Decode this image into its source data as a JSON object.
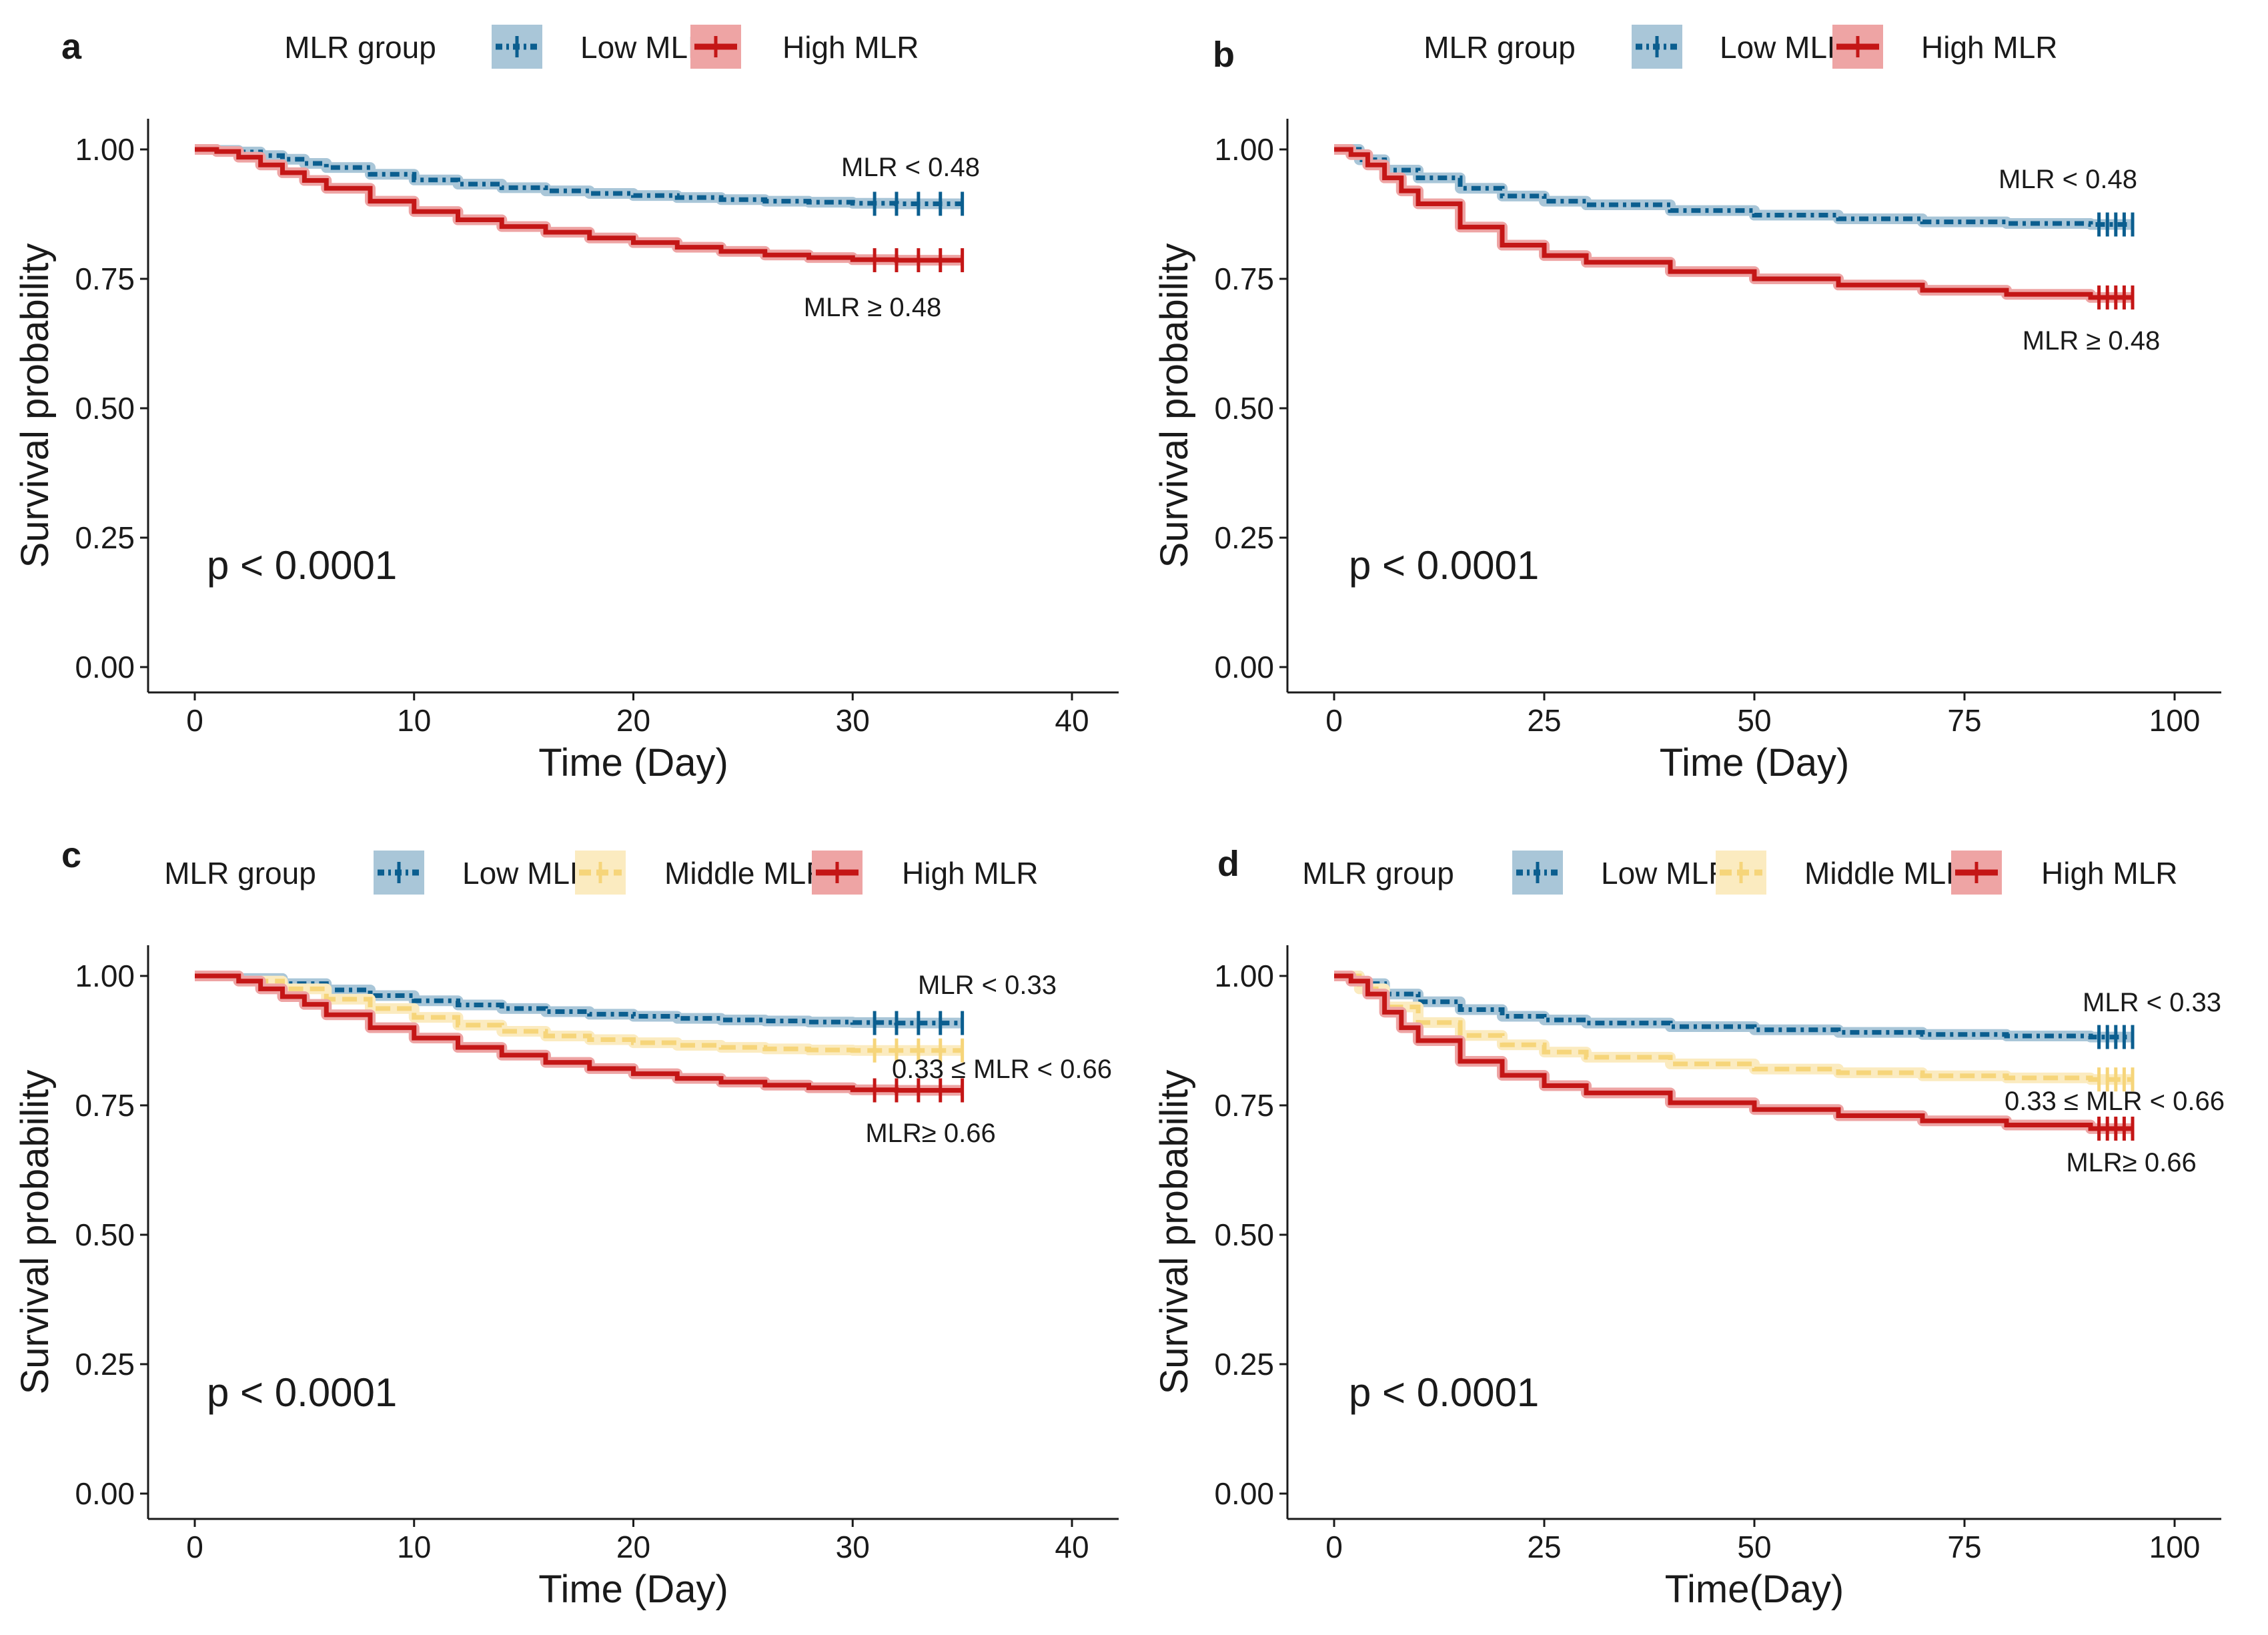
{
  "colors": {
    "low": "#0b5e8f",
    "low_band": "#a9c6d8",
    "middle": "#f6d57a",
    "middle_band": "#fbebc0",
    "high": "#c41616",
    "high_band": "#eea4a4",
    "axis": "#1a1a1a"
  },
  "chart_data": [
    {
      "panel": "a",
      "type": "line",
      "legend_title": "MLR group",
      "ylabel": "Survival probability",
      "xlabel": "Time (Day)",
      "xlim": [
        0,
        40
      ],
      "xticks": [
        "0",
        "10",
        "20",
        "30",
        "40"
      ],
      "ylim": [
        0,
        1
      ],
      "yticks": [
        "0.00",
        "0.25",
        "0.50",
        "0.75",
        "1.00"
      ],
      "p_value": "p < 0.0001",
      "series": [
        {
          "name": "Low MLR",
          "key": "low",
          "annotation": "MLR < 0.48",
          "x": [
            0,
            1,
            2,
            3,
            4,
            5,
            6,
            8,
            10,
            12,
            14,
            16,
            18,
            20,
            22,
            24,
            26,
            28,
            30,
            32,
            35
          ],
          "y": [
            1.0,
            0.998,
            0.995,
            0.988,
            0.981,
            0.973,
            0.965,
            0.952,
            0.941,
            0.933,
            0.926,
            0.92,
            0.915,
            0.911,
            0.907,
            0.903,
            0.9,
            0.898,
            0.896,
            0.895,
            0.895
          ],
          "censor": [
            31,
            32,
            33,
            34,
            35
          ]
        },
        {
          "name": "High MLR",
          "key": "high",
          "annotation": "MLR ≥ 0.48",
          "x": [
            0,
            1,
            2,
            3,
            4,
            5,
            6,
            8,
            10,
            12,
            14,
            16,
            18,
            20,
            22,
            24,
            26,
            28,
            30,
            32,
            35
          ],
          "y": [
            1.0,
            0.996,
            0.985,
            0.97,
            0.955,
            0.94,
            0.925,
            0.9,
            0.88,
            0.864,
            0.851,
            0.84,
            0.829,
            0.82,
            0.811,
            0.803,
            0.796,
            0.791,
            0.787,
            0.786,
            0.786
          ],
          "censor": [
            31,
            32,
            33,
            34,
            35
          ]
        }
      ]
    },
    {
      "panel": "b",
      "type": "line",
      "legend_title": "MLR group",
      "ylabel": "Survival probability",
      "xlabel": "Time (Day)",
      "xlim": [
        0,
        100
      ],
      "xticks": [
        "0",
        "25",
        "50",
        "75",
        "100"
      ],
      "ylim": [
        0,
        1
      ],
      "yticks": [
        "0.00",
        "0.25",
        "0.50",
        "0.75",
        "1.00"
      ],
      "p_value": "p < 0.0001",
      "series": [
        {
          "name": "Low MLR",
          "key": "low",
          "annotation": "MLR < 0.48",
          "x": [
            0,
            3,
            6,
            10,
            15,
            20,
            25,
            30,
            40,
            50,
            60,
            70,
            80,
            90,
            95
          ],
          "y": [
            1.0,
            0.98,
            0.96,
            0.945,
            0.925,
            0.91,
            0.9,
            0.893,
            0.882,
            0.873,
            0.866,
            0.86,
            0.857,
            0.855,
            0.855
          ],
          "censor": [
            91,
            92,
            93,
            94,
            95
          ]
        },
        {
          "name": "High MLR",
          "key": "high",
          "annotation": "MLR ≥ 0.48",
          "x": [
            0,
            2,
            4,
            6,
            8,
            10,
            15,
            20,
            25,
            30,
            40,
            50,
            60,
            70,
            80,
            90,
            95
          ],
          "y": [
            1.0,
            0.99,
            0.97,
            0.945,
            0.92,
            0.895,
            0.85,
            0.815,
            0.795,
            0.782,
            0.764,
            0.75,
            0.738,
            0.728,
            0.72,
            0.714,
            0.714
          ],
          "censor": [
            91,
            92,
            93,
            94,
            95
          ]
        }
      ]
    },
    {
      "panel": "c",
      "type": "line",
      "legend_title": "MLR group",
      "ylabel": "Survival probability",
      "xlabel": "Time (Day)",
      "xlim": [
        0,
        40
      ],
      "xticks": [
        "0",
        "10",
        "20",
        "30",
        "40"
      ],
      "ylim": [
        0,
        1
      ],
      "yticks": [
        "0.00",
        "0.25",
        "0.50",
        "0.75",
        "1.00"
      ],
      "p_value": "p < 0.0001",
      "series": [
        {
          "name": "Low MLR",
          "key": "low",
          "annotation": "MLR < 0.33",
          "x": [
            0,
            2,
            4,
            6,
            8,
            10,
            12,
            14,
            16,
            18,
            20,
            22,
            24,
            26,
            28,
            30,
            32,
            35
          ],
          "y": [
            1.0,
            0.995,
            0.985,
            0.973,
            0.962,
            0.952,
            0.944,
            0.937,
            0.931,
            0.926,
            0.922,
            0.918,
            0.915,
            0.913,
            0.911,
            0.91,
            0.909,
            0.909
          ],
          "censor": [
            31,
            32,
            33,
            34,
            35
          ]
        },
        {
          "name": "Middle MLR",
          "key": "middle",
          "annotation": "0.33 ≤ MLR < 0.66",
          "x": [
            0,
            2,
            4,
            6,
            8,
            10,
            12,
            14,
            16,
            18,
            20,
            22,
            24,
            26,
            28,
            30,
            32,
            35
          ],
          "y": [
            1.0,
            0.99,
            0.975,
            0.955,
            0.937,
            0.92,
            0.905,
            0.893,
            0.884,
            0.877,
            0.871,
            0.866,
            0.862,
            0.859,
            0.857,
            0.856,
            0.856,
            0.856
          ],
          "censor": [
            31,
            32,
            33,
            34,
            35
          ]
        },
        {
          "name": "High MLR",
          "key": "high",
          "annotation": "MLR≥ 0.66",
          "x": [
            0,
            2,
            3,
            4,
            5,
            6,
            8,
            10,
            12,
            14,
            16,
            18,
            20,
            22,
            24,
            26,
            28,
            30,
            32,
            35
          ],
          "y": [
            1.0,
            0.99,
            0.975,
            0.96,
            0.945,
            0.925,
            0.9,
            0.88,
            0.862,
            0.847,
            0.833,
            0.821,
            0.811,
            0.802,
            0.795,
            0.789,
            0.784,
            0.78,
            0.779,
            0.779
          ],
          "censor": [
            31,
            32,
            33,
            34,
            35
          ]
        }
      ]
    },
    {
      "panel": "d",
      "type": "line",
      "legend_title": "MLR group",
      "ylabel": "Survival probability",
      "xlabel": "Time(Day)",
      "xlim": [
        0,
        100
      ],
      "xticks": [
        "0",
        "25",
        "50",
        "75",
        "100"
      ],
      "ylim": [
        0,
        1
      ],
      "yticks": [
        "0.00",
        "0.25",
        "0.50",
        "0.75",
        "1.00"
      ],
      "p_value": "p < 0.0001",
      "series": [
        {
          "name": "Low MLR",
          "key": "low",
          "annotation": "MLR < 0.33",
          "x": [
            0,
            3,
            6,
            10,
            15,
            20,
            25,
            30,
            40,
            50,
            60,
            70,
            80,
            90,
            95
          ],
          "y": [
            1.0,
            0.985,
            0.965,
            0.95,
            0.935,
            0.922,
            0.915,
            0.909,
            0.902,
            0.896,
            0.891,
            0.887,
            0.884,
            0.882,
            0.882
          ],
          "censor": [
            91,
            92,
            93,
            94,
            95
          ]
        },
        {
          "name": "Middle MLR",
          "key": "middle",
          "annotation": "0.33 ≤ MLR < 0.66",
          "x": [
            0,
            3,
            6,
            10,
            15,
            20,
            25,
            30,
            40,
            50,
            60,
            70,
            80,
            90,
            95
          ],
          "y": [
            1.0,
            0.975,
            0.94,
            0.91,
            0.885,
            0.867,
            0.853,
            0.843,
            0.83,
            0.82,
            0.813,
            0.807,
            0.803,
            0.8,
            0.8
          ],
          "censor": [
            91,
            92,
            93,
            94,
            95
          ]
        },
        {
          "name": "High MLR",
          "key": "high",
          "annotation": "MLR≥ 0.66",
          "x": [
            0,
            2,
            4,
            6,
            8,
            10,
            15,
            20,
            25,
            30,
            40,
            50,
            60,
            70,
            80,
            90,
            95
          ],
          "y": [
            1.0,
            0.99,
            0.965,
            0.93,
            0.9,
            0.875,
            0.835,
            0.808,
            0.788,
            0.774,
            0.755,
            0.742,
            0.73,
            0.72,
            0.712,
            0.705,
            0.705
          ],
          "censor": [
            91,
            92,
            93,
            94,
            95
          ]
        }
      ]
    }
  ]
}
